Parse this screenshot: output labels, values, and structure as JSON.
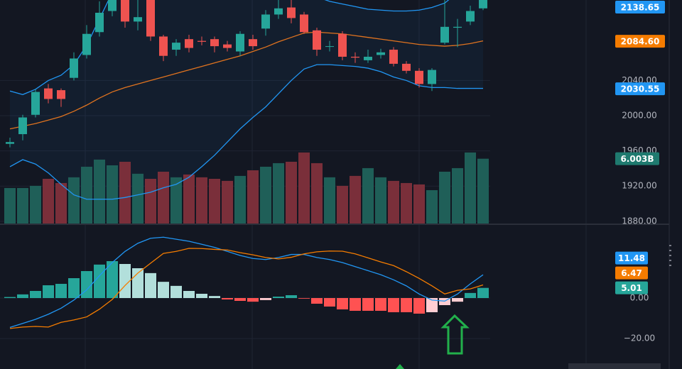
{
  "chart_data": [
    {
      "type": "candlestick",
      "open": [
        1968,
        1979,
        2001,
        2031,
        2029,
        2043,
        2069,
        2095,
        2119,
        2140,
        2107,
        2145,
        2090,
        2075,
        2087,
        2085,
        2087,
        2081,
        2073,
        2087,
        2099,
        2115,
        2123,
        2115,
        2097,
        2079,
        2093,
        2067,
        2063,
        2069,
        2075,
        2059,
        2051,
        2036,
        2083,
        2100,
        2107,
        2122
      ],
      "high": [
        1975,
        2001,
        2030,
        2036,
        2031,
        2072,
        2103,
        2130,
        2145,
        2150,
        2135,
        2150,
        2092,
        2087,
        2092,
        2090,
        2090,
        2085,
        2096,
        2092,
        2120,
        2135,
        2132,
        2118,
        2100,
        2085,
        2096,
        2072,
        2075,
        2076,
        2078,
        2062,
        2054,
        2054,
        2135,
        2110,
        2125,
        2145
      ],
      "low": [
        1964,
        1972,
        1998,
        2014,
        2010,
        2040,
        2065,
        2090,
        2113,
        2100,
        2097,
        2085,
        2062,
        2068,
        2072,
        2080,
        2072,
        2073,
        2068,
        2075,
        2091,
        2110,
        2105,
        2093,
        2068,
        2073,
        2063,
        2060,
        2060,
        2065,
        2056,
        2048,
        2032,
        2028,
        2081,
        2078,
        2103,
        2120
      ],
      "close": [
        1970,
        1998,
        2027,
        2019,
        2019,
        2065,
        2093,
        2117,
        2138,
        2107,
        2112,
        2090,
        2068,
        2083,
        2077,
        2084,
        2079,
        2077,
        2093,
        2079,
        2115,
        2122,
        2111,
        2095,
        2075,
        2079,
        2067,
        2066,
        2067,
        2072,
        2059,
        2051,
        2036,
        2052,
        2101,
        2101,
        2119,
        2138.65
      ],
      "up_color": "#26a69a",
      "down_color": "#ef5350",
      "bands": [
        {
          "color": "#2196f3",
          "values": [
            2028,
            2024,
            2030,
            2040,
            2046,
            2058,
            2080,
            2110,
            2140,
            2160,
            2175,
            2185,
            2190,
            2190,
            2188,
            2185,
            2180,
            2175,
            2170,
            2165,
            2162,
            2160,
            2155,
            2145,
            2135,
            2130,
            2127,
            2124,
            2121,
            2120,
            2119,
            2119,
            2120,
            2123,
            2128,
            2140,
            2150,
            2160
          ]
        },
        {
          "color": "#e0731f",
          "values": [
            1985,
            1988,
            1991,
            1995,
            1999,
            2005,
            2012,
            2020,
            2027,
            2032,
            2036,
            2040,
            2044,
            2048,
            2052,
            2056,
            2060,
            2064,
            2068,
            2073,
            2078,
            2084,
            2089,
            2094,
            2095,
            2094,
            2093,
            2091,
            2089,
            2087,
            2085,
            2083,
            2081,
            2080,
            2079,
            2080,
            2082,
            2085
          ]
        },
        {
          "color": "#2196f3",
          "values": [
            1942,
            1950,
            1945,
            1935,
            1922,
            1910,
            1905,
            1905,
            1905,
            1907,
            1910,
            1913,
            1918,
            1922,
            1930,
            1942,
            1955,
            1970,
            1985,
            1998,
            2010,
            2025,
            2040,
            2053,
            2058,
            2058,
            2057,
            2056,
            2054,
            2050,
            2044,
            2040,
            2034,
            2032,
            2032,
            2031,
            2031,
            2031
          ]
        }
      ],
      "band_fill": "rgba(33,150,243,0.06)",
      "volume": {
        "values": [
          3.29,
          3.29,
          3.49,
          4.14,
          3.75,
          4.28,
          5.26,
          5.92,
          5.39,
          5.72,
          4.61,
          4.14,
          4.8,
          4.28,
          4.54,
          4.28,
          4.14,
          3.95,
          4.41,
          4.93,
          5.26,
          5.59,
          5.72,
          6.58,
          5.59,
          4.28,
          3.49,
          4.41,
          5.13,
          4.28,
          3.95,
          3.75,
          3.62,
          3.09,
          4.8,
          5.13,
          6.58,
          6.003
        ],
        "ylim": [
          0,
          20.7
        ],
        "up_color": "#1f5f58",
        "down_color": "#7a2f3a",
        "last_label": "6.003B",
        "label_color": "#1f7a6f"
      },
      "price_labels": [
        {
          "value": 2138.65,
          "label": "2138.65",
          "color": "#2196f3"
        },
        {
          "value": 2084.6,
          "label": "2084.60",
          "color": "#f57c00"
        },
        {
          "value": 2030.55,
          "label": "2030.55",
          "color": "#2196f3"
        }
      ],
      "ylim": [
        1877.4,
        2131.5
      ],
      "yticks": [
        {
          "value": 1880,
          "label": "1880.00"
        },
        {
          "value": 1920,
          "label": "1920.00"
        },
        {
          "value": 1960,
          "label": "1960.00"
        },
        {
          "value": 2000,
          "label": "2000.00"
        },
        {
          "value": 2040,
          "label": "2040.00"
        }
      ],
      "grid": true
    },
    {
      "type": "macd",
      "histogram": {
        "values": [
          0.5,
          1.8,
          3.5,
          6.3,
          7,
          9.8,
          13.3,
          16.5,
          18.2,
          16.8,
          14.7,
          12.3,
          8,
          6,
          3.5,
          2.1,
          1,
          -0.7,
          -1.4,
          -1.8,
          -1,
          0.7,
          1.4,
          -0.3,
          -2.8,
          -4.2,
          -5.6,
          -6.3,
          -6.3,
          -6.3,
          -7,
          -7,
          -7.7,
          -7,
          -3.5,
          -1.8,
          2.5,
          5.01
        ],
        "colors": {
          "pos_up": "#26a69a",
          "pos_down": "#b2dfdb",
          "neg_down": "#ff5252",
          "neg_up": "#ffcdd2"
        }
      },
      "series": [
        {
          "color": "#2196f3",
          "values": [
            -14.5,
            -12.5,
            -10.5,
            -8,
            -5,
            -1,
            4,
            11,
            17.5,
            23,
            27,
            29.5,
            30,
            29,
            28,
            26.5,
            25,
            23,
            21,
            19.5,
            19,
            20,
            21.5,
            21.5,
            20,
            19,
            17.5,
            15.5,
            13.5,
            11.5,
            9,
            6,
            2,
            -1,
            -1.5,
            2,
            7,
            11.48
          ]
        },
        {
          "color": "#f57c00",
          "values": [
            -15,
            -14.3,
            -14,
            -14.3,
            -12,
            -10.8,
            -9.3,
            -5.5,
            -0.7,
            6.2,
            12.3,
            17.2,
            22,
            23,
            24.5,
            24.4,
            24,
            23.7,
            22.4,
            21.3,
            20,
            19.3,
            20.1,
            21.8,
            22.8,
            23.2,
            23.1,
            21.8,
            19.8,
            17.8,
            16,
            13,
            9.7,
            6,
            2,
            3.8,
            4.5,
            6.47
          ]
        }
      ],
      "hist_label_color": "#26a69a",
      "ylim": [
        -35,
        35
      ],
      "yticks": [
        {
          "value": -20,
          "label": "−20.00"
        },
        {
          "value": 0,
          "label": "0.00"
        }
      ],
      "grid": true
    }
  ]
}
